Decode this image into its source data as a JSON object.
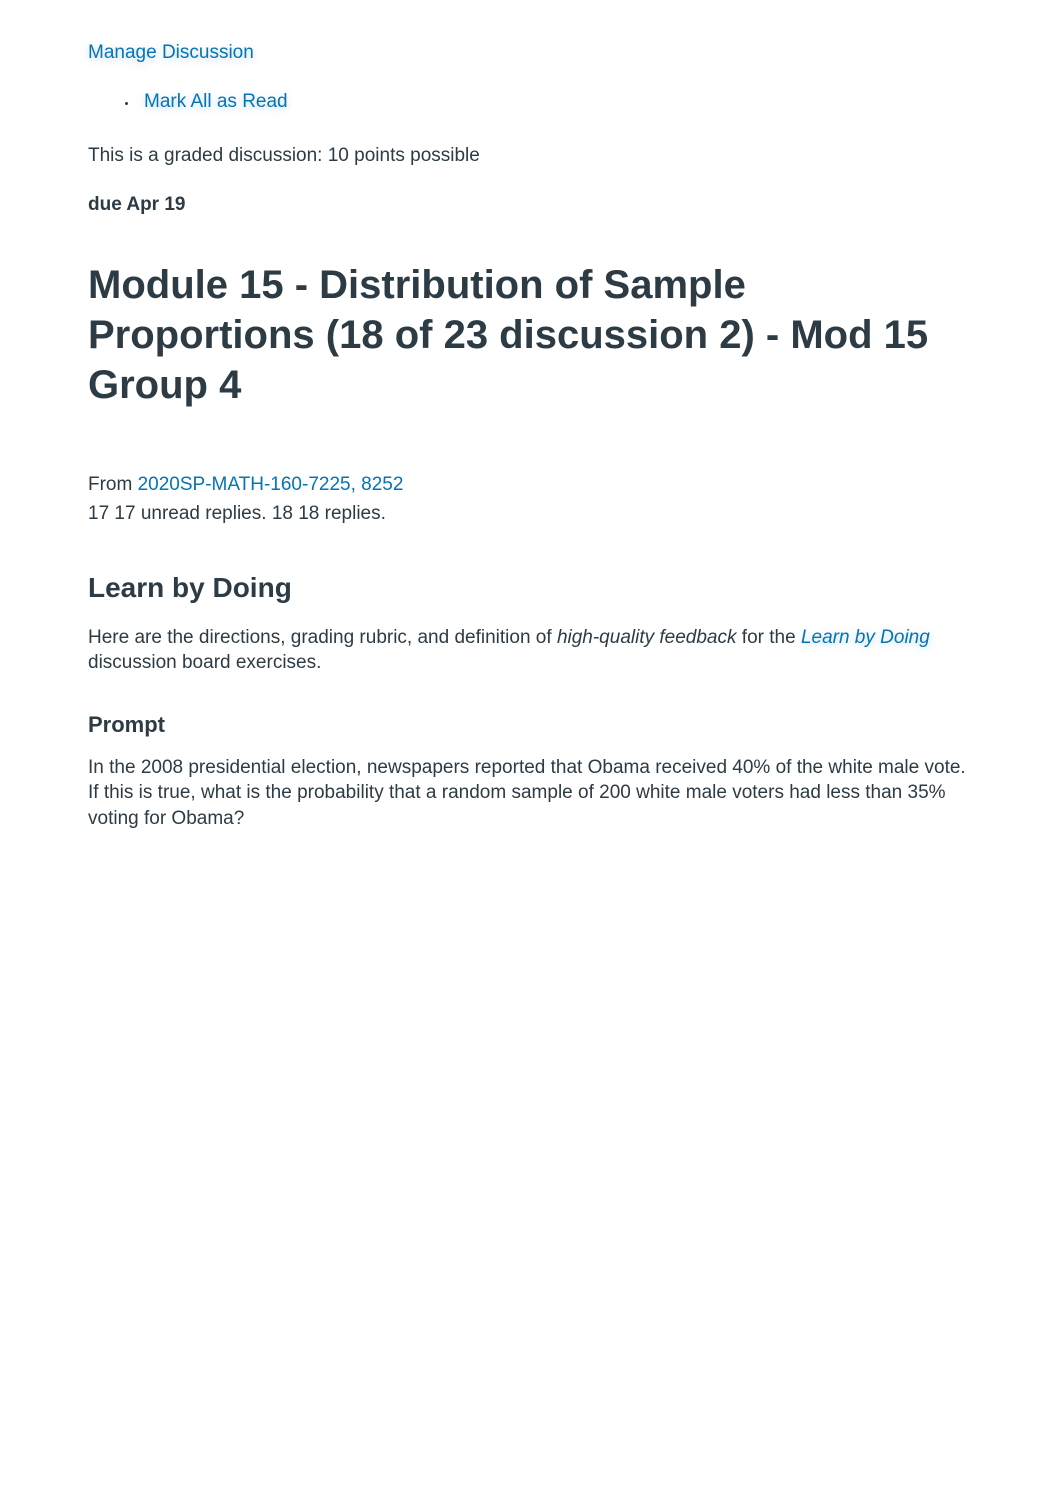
{
  "header": {
    "manage_discussion_label": "Manage Discussion",
    "mark_all_read_label": "Mark All as Read"
  },
  "meta": {
    "graded_text_prefix": "This is a graded discussion: ",
    "points_possible": "10 points possible",
    "due_label": "due ",
    "due_date": "Apr 19"
  },
  "title": "Module 15 - Distribution of Sample Proportions (18 of 23 discussion 2) - Mod 15 Group 4",
  "source": {
    "from_label": "From ",
    "course_link_text": "2020SP-MATH-160-7225, 8252"
  },
  "replies": {
    "unread_count_1": "17",
    "unread_count_2": "17",
    "unread_label": " unread replies. ",
    "total_count_1": "18",
    "total_count_2": "18",
    "total_label": " replies."
  },
  "content": {
    "learn_heading": "Learn by Doing",
    "instructions_prefix": "Here are the directions, grading rubric, and definition of ",
    "instructions_italic": "high-quality feedback",
    "instructions_middle": " for the ",
    "learn_link_text": "Learn by Doing",
    "instructions_suffix": " discussion board exercises.",
    "prompt_heading": "Prompt",
    "prompt_text": "In the 2008 presidential election, newspapers reported that Obama received 40% of the white male vote. If this is true, what is the probability that a random sample of 200 white male voters had less than 35% voting for Obama?"
  },
  "colors": {
    "link": "#0374b5",
    "text": "#2d3b45",
    "background": "#ffffff"
  }
}
